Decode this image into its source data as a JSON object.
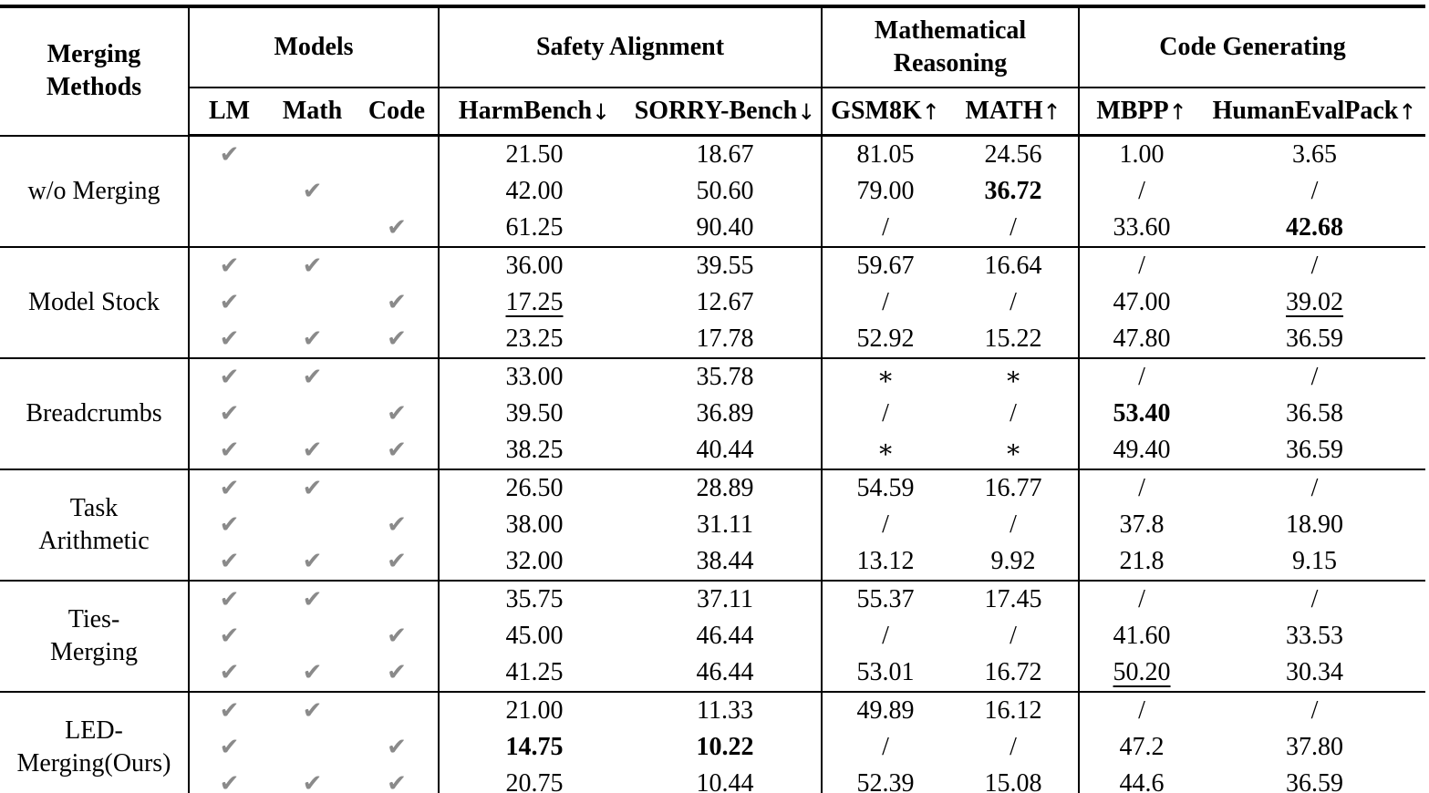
{
  "table": {
    "method_header": [
      "Merging",
      "Methods"
    ],
    "groups": [
      {
        "label": [
          "Models"
        ],
        "cols": [
          {
            "name": "LM"
          },
          {
            "name": "Math"
          },
          {
            "name": "Code"
          }
        ]
      },
      {
        "label": [
          "Safety Alignment"
        ],
        "cols": [
          {
            "name": "HarmBench",
            "dir": "↓"
          },
          {
            "name": "SORRY-Bench",
            "dir": "↓"
          }
        ]
      },
      {
        "label": [
          "Mathematical",
          "Reasoning"
        ],
        "cols": [
          {
            "name": "GSM8K",
            "dir": "↑"
          },
          {
            "name": "MATH",
            "dir": "↑"
          }
        ]
      },
      {
        "label": [
          "Code Generating"
        ],
        "cols": [
          {
            "name": "MBPP",
            "dir": "↑"
          },
          {
            "name": "HumanEvalPack",
            "dir": "↑"
          }
        ]
      }
    ],
    "check_icon": "✔",
    "check_color": "#8a8a8a",
    "blocks": [
      {
        "method": [
          "w/o Merging"
        ],
        "rows": [
          {
            "models": [
              1,
              0,
              0
            ],
            "values": [
              {
                "v": "21.50"
              },
              {
                "v": "18.67"
              },
              {
                "v": "81.05"
              },
              {
                "v": "24.56"
              },
              {
                "v": "1.00"
              },
              {
                "v": "3.65"
              }
            ]
          },
          {
            "models": [
              0,
              1,
              0
            ],
            "values": [
              {
                "v": "42.00"
              },
              {
                "v": "50.60"
              },
              {
                "v": "79.00"
              },
              {
                "v": "36.72",
                "b": 1
              },
              {
                "v": "/"
              },
              {
                "v": "/"
              }
            ]
          },
          {
            "models": [
              0,
              0,
              1
            ],
            "values": [
              {
                "v": "61.25"
              },
              {
                "v": "90.40"
              },
              {
                "v": "/"
              },
              {
                "v": "/"
              },
              {
                "v": "33.60"
              },
              {
                "v": "42.68",
                "b": 1
              }
            ]
          }
        ]
      },
      {
        "method": [
          "Model Stock"
        ],
        "rows": [
          {
            "models": [
              1,
              1,
              0
            ],
            "values": [
              {
                "v": "36.00"
              },
              {
                "v": "39.55"
              },
              {
                "v": "59.67"
              },
              {
                "v": "16.64"
              },
              {
                "v": "/"
              },
              {
                "v": "/"
              }
            ]
          },
          {
            "models": [
              1,
              0,
              1
            ],
            "values": [
              {
                "v": "17.25",
                "u": 1
              },
              {
                "v": "12.67"
              },
              {
                "v": "/"
              },
              {
                "v": "/"
              },
              {
                "v": "47.00"
              },
              {
                "v": "39.02",
                "u": 1
              }
            ]
          },
          {
            "models": [
              1,
              1,
              1
            ],
            "values": [
              {
                "v": "23.25"
              },
              {
                "v": "17.78"
              },
              {
                "v": "52.92"
              },
              {
                "v": "15.22"
              },
              {
                "v": "47.80"
              },
              {
                "v": "36.59"
              }
            ]
          }
        ]
      },
      {
        "method": [
          "Breadcrumbs"
        ],
        "rows": [
          {
            "models": [
              1,
              1,
              0
            ],
            "values": [
              {
                "v": "33.00"
              },
              {
                "v": "35.78"
              },
              {
                "v": "∗"
              },
              {
                "v": "∗"
              },
              {
                "v": "/"
              },
              {
                "v": "/"
              }
            ]
          },
          {
            "models": [
              1,
              0,
              1
            ],
            "values": [
              {
                "v": "39.50"
              },
              {
                "v": "36.89"
              },
              {
                "v": "/"
              },
              {
                "v": "/"
              },
              {
                "v": "53.40",
                "b": 1
              },
              {
                "v": "36.58"
              }
            ]
          },
          {
            "models": [
              1,
              1,
              1
            ],
            "values": [
              {
                "v": "38.25"
              },
              {
                "v": "40.44"
              },
              {
                "v": "∗"
              },
              {
                "v": "∗"
              },
              {
                "v": "49.40"
              },
              {
                "v": "36.59"
              }
            ]
          }
        ]
      },
      {
        "method": [
          "Task",
          "Arithmetic"
        ],
        "rows": [
          {
            "models": [
              1,
              1,
              0
            ],
            "values": [
              {
                "v": "26.50"
              },
              {
                "v": "28.89"
              },
              {
                "v": "54.59"
              },
              {
                "v": "16.77"
              },
              {
                "v": "/"
              },
              {
                "v": "/"
              }
            ]
          },
          {
            "models": [
              1,
              0,
              1
            ],
            "values": [
              {
                "v": "38.00"
              },
              {
                "v": "31.11"
              },
              {
                "v": "/"
              },
              {
                "v": "/"
              },
              {
                "v": "37.8"
              },
              {
                "v": "18.90"
              }
            ]
          },
          {
            "models": [
              1,
              1,
              1
            ],
            "values": [
              {
                "v": "32.00"
              },
              {
                "v": "38.44"
              },
              {
                "v": "13.12"
              },
              {
                "v": "9.92"
              },
              {
                "v": "21.8"
              },
              {
                "v": "9.15"
              }
            ]
          }
        ]
      },
      {
        "method": [
          "Ties-",
          "Merging"
        ],
        "rows": [
          {
            "models": [
              1,
              1,
              0
            ],
            "values": [
              {
                "v": "35.75"
              },
              {
                "v": "37.11"
              },
              {
                "v": "55.37"
              },
              {
                "v": "17.45"
              },
              {
                "v": "/"
              },
              {
                "v": "/"
              }
            ]
          },
          {
            "models": [
              1,
              0,
              1
            ],
            "values": [
              {
                "v": "45.00"
              },
              {
                "v": "46.44"
              },
              {
                "v": "/"
              },
              {
                "v": "/"
              },
              {
                "v": "41.60"
              },
              {
                "v": "33.53"
              }
            ]
          },
          {
            "models": [
              1,
              1,
              1
            ],
            "values": [
              {
                "v": "41.25"
              },
              {
                "v": "46.44"
              },
              {
                "v": "53.01"
              },
              {
                "v": "16.72"
              },
              {
                "v": "50.20",
                "u": 1
              },
              {
                "v": "30.34"
              }
            ]
          }
        ]
      },
      {
        "method": [
          "LED-",
          "Merging(Ours)"
        ],
        "rows": [
          {
            "models": [
              1,
              1,
              0
            ],
            "values": [
              {
                "v": "21.00"
              },
              {
                "v": "11.33"
              },
              {
                "v": "49.89"
              },
              {
                "v": "16.12"
              },
              {
                "v": "/"
              },
              {
                "v": "/"
              }
            ]
          },
          {
            "models": [
              1,
              0,
              1
            ],
            "values": [
              {
                "v": "14.75",
                "b": 1
              },
              {
                "v": "10.22",
                "b": 1
              },
              {
                "v": "/"
              },
              {
                "v": "/"
              },
              {
                "v": "47.2"
              },
              {
                "v": "37.80"
              }
            ]
          },
          {
            "models": [
              1,
              1,
              1
            ],
            "values": [
              {
                "v": "20.75"
              },
              {
                "v": "10.44",
                "u": 1
              },
              {
                "v": "52.39"
              },
              {
                "v": "15.08"
              },
              {
                "v": "44.6"
              },
              {
                "v": "36.59"
              }
            ]
          }
        ]
      }
    ]
  }
}
